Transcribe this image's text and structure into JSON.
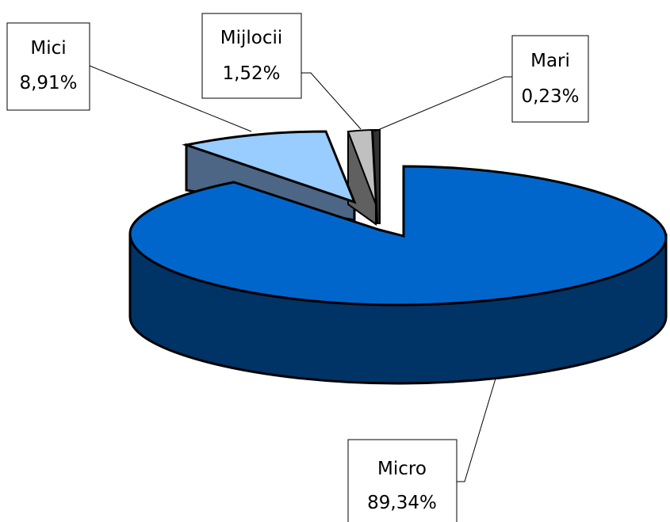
{
  "chart_data": {
    "type": "pie",
    "title": "",
    "slices": [
      {
        "label": "Micro",
        "value": 89.34,
        "percent_text": "89,34%",
        "color": "#0066CC",
        "side_color": "#003366"
      },
      {
        "label": "Mici",
        "value": 8.91,
        "percent_text": "8,91%",
        "color": "#99CCFF",
        "side_color": "#4D6685"
      },
      {
        "label": "Mijlocii",
        "value": 1.52,
        "percent_text": "1,52%",
        "color": "#C0C0C0",
        "side_color": "#606060"
      },
      {
        "label": "Mari",
        "value": 0.23,
        "percent_text": "0,23%",
        "color": "#333333",
        "side_color": "#1A1A1A"
      }
    ],
    "exploded": true,
    "three_d": true,
    "legend": "none"
  }
}
